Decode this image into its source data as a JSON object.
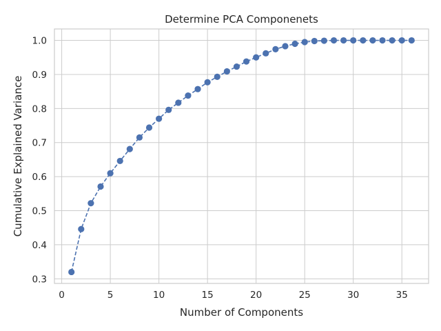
{
  "chart_data": {
    "type": "line",
    "title": "Determine PCA Componenets",
    "xlabel": "Number of Components",
    "ylabel": "Cumulative Explained Variance",
    "xlim": [
      -0.75,
      37.75
    ],
    "ylim": [
      0.2865,
      1.0335
    ],
    "x_ticks": [
      0,
      5,
      10,
      15,
      20,
      25,
      30,
      35
    ],
    "y_ticks": [
      0.3,
      0.4,
      0.5,
      0.6,
      0.7,
      0.8,
      0.9,
      1.0
    ],
    "grid": true,
    "line_style": "dashed",
    "marker": "circle",
    "color": "#4c72b0",
    "x": [
      1,
      2,
      3,
      4,
      5,
      6,
      7,
      8,
      9,
      10,
      11,
      12,
      13,
      14,
      15,
      16,
      17,
      18,
      19,
      20,
      21,
      22,
      23,
      24,
      25,
      26,
      27,
      28,
      29,
      30,
      31,
      32,
      33,
      34,
      35,
      36
    ],
    "values": [
      0.32,
      0.446,
      0.522,
      0.571,
      0.61,
      0.646,
      0.681,
      0.715,
      0.744,
      0.77,
      0.796,
      0.817,
      0.838,
      0.857,
      0.877,
      0.893,
      0.909,
      0.923,
      0.938,
      0.95,
      0.962,
      0.974,
      0.983,
      0.99,
      0.995,
      0.998,
      0.999,
      1.0,
      1.0,
      1.0,
      1.0,
      1.0,
      1.0,
      1.0,
      1.0,
      1.0
    ]
  }
}
